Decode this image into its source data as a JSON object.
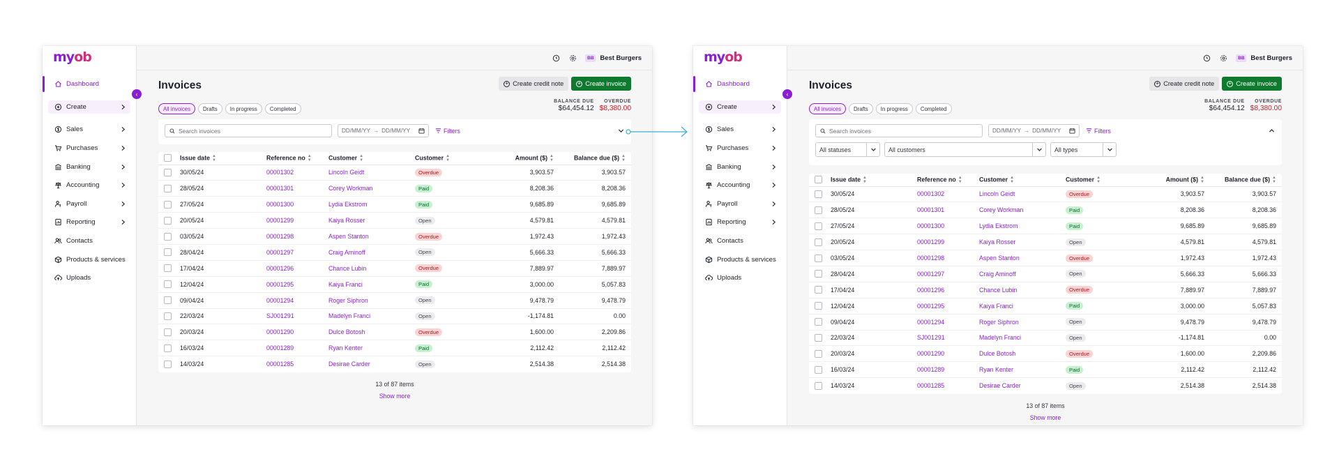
{
  "brand": {
    "logo_a": "my",
    "logo_b": "ob",
    "accent": "#8a1fd1",
    "primary_green": "#0d7a2d",
    "overdue_red": "#c81e25"
  },
  "topbar": {
    "history_icon": "clock-icon",
    "settings_icon": "gear-icon",
    "avatar": "BB",
    "business": "Best Burgers"
  },
  "sidebar": {
    "items": [
      {
        "label": "Dashboard",
        "icon": "home-icon",
        "chevron": false
      },
      {
        "label": "Create",
        "icon": "plus-circle-icon",
        "chevron": true
      },
      {
        "label": "Sales",
        "icon": "dollar-circle-icon",
        "chevron": true
      },
      {
        "label": "Purchases",
        "icon": "cart-icon",
        "chevron": true
      },
      {
        "label": "Banking",
        "icon": "bank-icon",
        "chevron": true
      },
      {
        "label": "Accounting",
        "icon": "scales-icon",
        "chevron": true
      },
      {
        "label": "Payroll",
        "icon": "person-dollar-icon",
        "chevron": true
      },
      {
        "label": "Reporting",
        "icon": "report-icon",
        "chevron": true
      },
      {
        "label": "Contacts",
        "icon": "contacts-icon",
        "chevron": false
      },
      {
        "label": "Products & services",
        "icon": "box-icon",
        "chevron": false
      },
      {
        "label": "Uploads",
        "icon": "cloud-upload-icon",
        "chevron": false
      }
    ]
  },
  "page": {
    "title": "Invoices",
    "create_credit_note": "Create credit note",
    "create_invoice": "Create invoice",
    "tabs": [
      "All invoices",
      "Drafts",
      "In progress",
      "Completed"
    ],
    "balance_due_label": "BALANCE DUE",
    "balance_due_value": "$64,454.12",
    "overdue_label": "OVERDUE",
    "overdue_value": "$8,380.00"
  },
  "filters": {
    "search_placeholder": "Search invoices",
    "date_from": "DD/MM/YY",
    "date_to": "DD/MM/YY",
    "filters_label": "Filters",
    "status_select": "All statuses",
    "customer_select": "All customers",
    "type_select": "All types"
  },
  "table": {
    "columns": [
      "Issue date",
      "Reference no",
      "Customer",
      "Customer",
      "Amount ($)",
      "Balance due ($)"
    ],
    "rows": [
      {
        "date": "30/05/24",
        "ref": "00001302",
        "customer": "Lincoln Geidt",
        "status": "Overdue",
        "amount": "3,903.57",
        "balance": "3,903.57"
      },
      {
        "date": "28/05/24",
        "ref": "00001301",
        "customer": "Corey Workman",
        "status": "Paid",
        "amount": "8,208.36",
        "balance": "8,208.36"
      },
      {
        "date": "27/05/24",
        "ref": "00001300",
        "customer": "Lydia Ekstrom",
        "status": "Paid",
        "amount": "9,685.89",
        "balance": "9,685.89"
      },
      {
        "date": "20/05/24",
        "ref": "00001299",
        "customer": "Kaiya Rosser",
        "status": "Open",
        "amount": "4,579.81",
        "balance": "4,579.81"
      },
      {
        "date": "03/05/24",
        "ref": "00001298",
        "customer": "Aspen Stanton",
        "status": "Overdue",
        "amount": "1,972.43",
        "balance": "1,972.43"
      },
      {
        "date": "28/04/24",
        "ref": "00001297",
        "customer": "Craig Aminoff",
        "status": "Open",
        "amount": "5,666.33",
        "balance": "5,666.33"
      },
      {
        "date": "17/04/24",
        "ref": "00001296",
        "customer": "Chance Lubin",
        "status": "Overdue",
        "amount": "7,889.97",
        "balance": "7,889.97"
      },
      {
        "date": "12/04/24",
        "ref": "00001295",
        "customer": "Kaiya Franci",
        "status": "Paid",
        "amount": "3,000.00",
        "balance": "5,057.83"
      },
      {
        "date": "09/04/24",
        "ref": "00001294",
        "customer": "Roger Siphron",
        "status": "Open",
        "amount": "9,478.79",
        "balance": "9,478.79"
      },
      {
        "date": "22/03/24",
        "ref": "SJ001291",
        "customer": "Madelyn Franci",
        "status": "Open",
        "amount": "-1,174.81",
        "balance": "0.00"
      },
      {
        "date": "20/03/24",
        "ref": "00001290",
        "customer": "Dulce Botosh",
        "status": "Overdue",
        "amount": "1,600.00",
        "balance": "2,209.86"
      },
      {
        "date": "16/03/24",
        "ref": "00001289",
        "customer": "Ryan Kenter",
        "status": "Paid",
        "amount": "2,112.42",
        "balance": "2,112.42"
      },
      {
        "date": "14/03/24",
        "ref": "00001285",
        "customer": "Desirae Carder",
        "status": "Open",
        "amount": "2,514.38",
        "balance": "2,514.38"
      }
    ]
  },
  "pager": {
    "count": "13 of 87 items",
    "show_more": "Show more"
  }
}
